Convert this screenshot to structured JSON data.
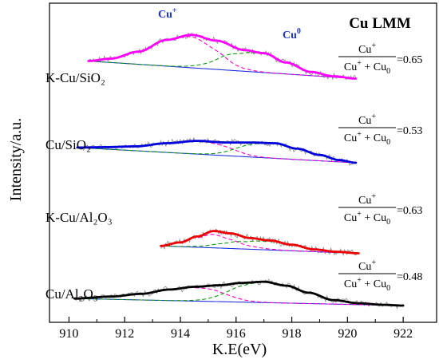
{
  "chart_data": {
    "type": "line",
    "title": "Cu LMM",
    "xlabel": "K.E(eV)",
    "ylabel": "Intensity/a.u.",
    "xlim": [
      909.3,
      923.2
    ],
    "xticks": [
      910,
      912,
      914,
      916,
      918,
      920,
      922
    ],
    "y_axis_ticks_labeled": false,
    "peak_labels": [
      "Cu+",
      "Cu0"
    ],
    "legend_placement": "none",
    "components": [
      "raw data (gray)",
      "fitted envelope (colored)",
      "Cu+ component (magenta dashed)",
      "Cu0 component (green dashed)",
      "background (blue)"
    ],
    "series": [
      {
        "name": "K-Cu/SiO2",
        "label": "K-Cu/SiO₂",
        "color": "#ff00ff",
        "ratio_text": "=0.65",
        "x_range": [
          910.7,
          920.3
        ],
        "cu_plus_peak": 914.4,
        "cu0_peak": 916.8,
        "fit_x": [
          910.7,
          911.5,
          912.5,
          913.5,
          914.4,
          915.3,
          916.3,
          917.0,
          917.8,
          918.7,
          919.5,
          920.3
        ],
        "fit_y": [
          4.8,
          5.4,
          7.2,
          10.2,
          11.5,
          10.0,
          7.6,
          6.8,
          4.4,
          2.0,
          0.9,
          0.3
        ]
      },
      {
        "name": "Cu/SiO2",
        "label": "Cu/SiO₂",
        "color": "#0000dd",
        "ratio_text": "=0.53",
        "x_range": [
          910.3,
          920.3
        ],
        "cu_plus_peak": 914.5,
        "cu0_peak": 917.4,
        "fit_x": [
          910.3,
          911.3,
          912.4,
          913.5,
          914.6,
          915.6,
          916.5,
          917.4,
          918.2,
          919.0,
          919.7,
          920.3
        ],
        "fit_y": [
          4.3,
          4.4,
          4.6,
          5.4,
          6.0,
          5.6,
          5.6,
          5.4,
          4.0,
          2.4,
          1.1,
          0.4
        ]
      },
      {
        "name": "K-Cu/Al2O3",
        "label": "K-Cu/Al₂O₃",
        "color": "#ee0000",
        "ratio_text": "=0.63",
        "x_range": [
          913.3,
          920.4
        ],
        "cu_plus_peak": 915.2,
        "cu0_peak": 916.9,
        "fit_x": [
          913.3,
          914.0,
          914.6,
          915.2,
          915.8,
          916.5,
          917.2,
          918.0,
          918.8,
          919.6,
          920.4
        ],
        "fit_y": [
          2.0,
          2.9,
          4.4,
          5.8,
          5.2,
          4.0,
          3.4,
          2.3,
          1.1,
          0.5,
          0.1
        ]
      },
      {
        "name": "Cu/Al2O3",
        "label": "Cu/Al₂O₃",
        "color": "#000000",
        "ratio_text": "=0.48",
        "x_range": [
          910.2,
          922.0
        ],
        "cu_plus_peak": 914.3,
        "cu0_peak": 916.9,
        "fit_x": [
          910.2,
          911.5,
          912.6,
          913.6,
          914.5,
          915.4,
          916.2,
          917.0,
          917.8,
          918.6,
          919.5,
          920.4,
          921.3,
          922.0
        ],
        "fit_y": [
          2.0,
          2.5,
          3.2,
          4.3,
          5.0,
          5.4,
          6.0,
          6.3,
          5.3,
          3.5,
          1.6,
          0.8,
          0.4,
          0.2
        ]
      }
    ]
  }
}
